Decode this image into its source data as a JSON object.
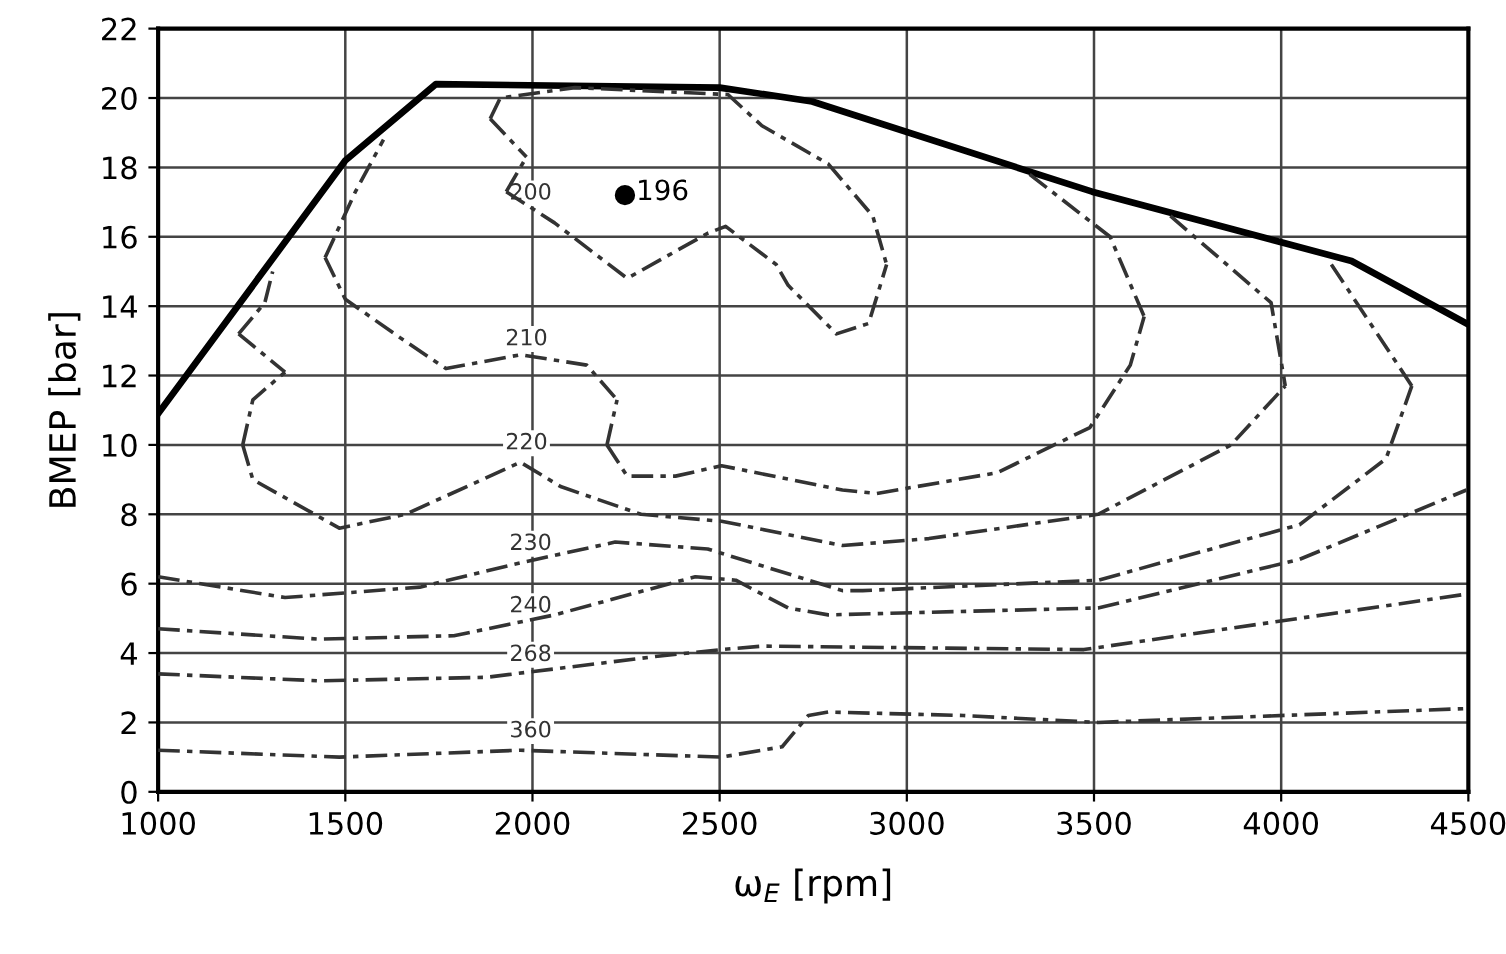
{
  "chart_data": {
    "type": "line",
    "xlabel": "ω$_{E}$ [rpm]",
    "ylabel": "BMEP [bar]",
    "xlim": [
      1000,
      4500
    ],
    "xticks": [
      1000,
      1500,
      2000,
      2500,
      3000,
      3500,
      4000,
      4500
    ],
    "ylim": [
      0,
      22
    ],
    "yticks": [
      0,
      2,
      4,
      6,
      8,
      10,
      12,
      14,
      16,
      18,
      20,
      22
    ],
    "grid": true,
    "legend": false,
    "marker": "none",
    "series": [
      {
        "color": "#000000",
        "line_style": "solid",
        "x": [
          1000,
          1500,
          1742,
          2500,
          2747,
          3495,
          4188,
          4495
        ],
        "values": [
          10.9,
          18.2,
          20.4,
          20.3,
          19.9,
          17.3,
          15.3,
          13.5
        ]
      },
      {
        "color": "#333333",
        "line_style": "dashed",
        "x": [
          1887,
          1914,
          2113,
          2522,
          2613,
          2790,
          2909,
          2946
        ],
        "values": [
          19.4,
          20.0,
          20.3,
          20.1,
          19.2,
          18.1,
          16.6,
          15.2
        ]
      },
      {
        "color": "#333333",
        "line_style": "dashed",
        "x": [
          1930,
          2059,
          2253,
          2468,
          2516,
          2651,
          2683,
          2812,
          2898,
          2946
        ],
        "values": [
          17.3,
          16.4,
          14.8,
          16.1,
          16.3,
          15.2,
          14.6,
          13.2,
          13.5,
          15.2
        ]
      },
      {
        "color": "#333333",
        "line_style": "dashed",
        "x": [
          1887,
          1984
        ],
        "values": [
          19.4,
          18.3
        ]
      },
      {
        "color": "#333333",
        "line_style": "dashed",
        "x": [
          1930,
          1984
        ],
        "values": [
          17.3,
          18.3
        ]
      },
      {
        "color": "#333333",
        "line_style": "dashed",
        "x": [
          1446,
          1527,
          1602
        ],
        "values": [
          15.4,
          17.3,
          18.8
        ]
      },
      {
        "color": "#333333",
        "line_style": "dashed",
        "x": [
          1446,
          1500,
          1645,
          1769,
          1968,
          2145,
          2226
        ],
        "values": [
          15.4,
          14.2,
          13.1,
          12.2,
          12.6,
          12.3,
          11.3
        ]
      },
      {
        "color": "#333333",
        "line_style": "dashed",
        "x": [
          2199,
          2226
        ],
        "values": [
          10.0,
          11.3
        ]
      },
      {
        "color": "#333333",
        "line_style": "dashed",
        "x": [
          2199,
          2253,
          2382,
          2505,
          2828,
          2919,
          3242,
          3489,
          3597,
          3634
        ],
        "values": [
          10.0,
          9.1,
          9.1,
          9.4,
          8.7,
          8.6,
          9.2,
          10.5,
          12.3,
          13.7
        ]
      },
      {
        "color": "#333333",
        "line_style": "dashed",
        "x": [
          3328,
          3543,
          3634
        ],
        "values": [
          17.8,
          16.0,
          13.7
        ]
      },
      {
        "color": "#333333",
        "line_style": "dashed",
        "x": [
          1215,
          1285,
          1306
        ],
        "values": [
          13.2,
          14.1,
          15.0
        ]
      },
      {
        "color": "#333333",
        "line_style": "dashed",
        "x": [
          1215,
          1339
        ],
        "values": [
          13.2,
          12.1
        ]
      },
      {
        "color": "#333333",
        "line_style": "dashed",
        "x": [
          1226,
          1253,
          1339
        ],
        "values": [
          10.0,
          11.3,
          12.1
        ]
      },
      {
        "color": "#333333",
        "line_style": "dashed",
        "x": [
          1226,
          1253,
          1484,
          1661,
          1968,
          2075,
          2290,
          2505,
          2828,
          3059,
          3511,
          3866,
          4011
        ],
        "values": [
          10.0,
          9.0,
          7.6,
          8.0,
          9.5,
          8.8,
          8.0,
          7.8,
          7.1,
          7.3,
          8.0,
          10.0,
          11.7
        ]
      },
      {
        "color": "#333333",
        "line_style": "dashed",
        "x": [
          3704,
          3973,
          4011
        ],
        "values": [
          16.6,
          14.1,
          11.7
        ]
      },
      {
        "color": "#333333",
        "line_style": "dashed",
        "x": [
          1000,
          1339,
          1699,
          1968,
          2221,
          2468,
          2828,
          2882,
          3511,
          4049,
          4280,
          4349
        ],
        "values": [
          6.2,
          5.6,
          5.9,
          6.6,
          7.2,
          7.0,
          5.8,
          5.8,
          6.1,
          7.7,
          9.6,
          11.7
        ]
      },
      {
        "color": "#333333",
        "line_style": "dashed",
        "x": [
          4134,
          4349
        ],
        "values": [
          15.2,
          11.7
        ]
      },
      {
        "color": "#333333",
        "line_style": "dashed",
        "x": [
          1000,
          1430,
          1790,
          2059,
          2435,
          2543,
          2683,
          2790,
          3511,
          4049,
          4495
        ],
        "values": [
          4.7,
          4.4,
          4.5,
          5.1,
          6.2,
          6.1,
          5.3,
          5.1,
          5.3,
          6.7,
          8.7
        ]
      },
      {
        "color": "#333333",
        "line_style": "dashed",
        "x": [
          1000,
          1430,
          1876,
          2328,
          2505,
          2613,
          3473,
          4495
        ],
        "values": [
          3.4,
          3.2,
          3.3,
          3.9,
          4.1,
          4.2,
          4.1,
          5.7
        ]
      },
      {
        "color": "#333333",
        "line_style": "dashed",
        "x": [
          1000,
          1484,
          1968,
          2505,
          2667,
          2737,
          2790,
          3151,
          3511,
          4495
        ],
        "values": [
          1.2,
          1.0,
          1.2,
          1.0,
          1.3,
          2.2,
          2.3,
          2.2,
          2.0,
          2.4
        ]
      },
      {
        "type": "scatter",
        "marker": "circle",
        "color": "#000000",
        "x": [
          2247
        ],
        "values": [
          17.2
        ]
      }
    ],
    "annotations": [
      {
        "text": "196",
        "x": 2247,
        "y": 17.2
      },
      {
        "text": "200",
        "x": 1995,
        "y": 16.7
      },
      {
        "text": "210",
        "x": 1984,
        "y": 12.5
      },
      {
        "text": "220",
        "x": 1984,
        "y": 9.5
      },
      {
        "text": "230",
        "x": 1995,
        "y": 6.6
      },
      {
        "text": "240",
        "x": 1995,
        "y": 4.8
      },
      {
        "text": "268",
        "x": 1995,
        "y": 3.4
      },
      {
        "text": "360",
        "x": 1995,
        "y": 1.2
      }
    ]
  }
}
